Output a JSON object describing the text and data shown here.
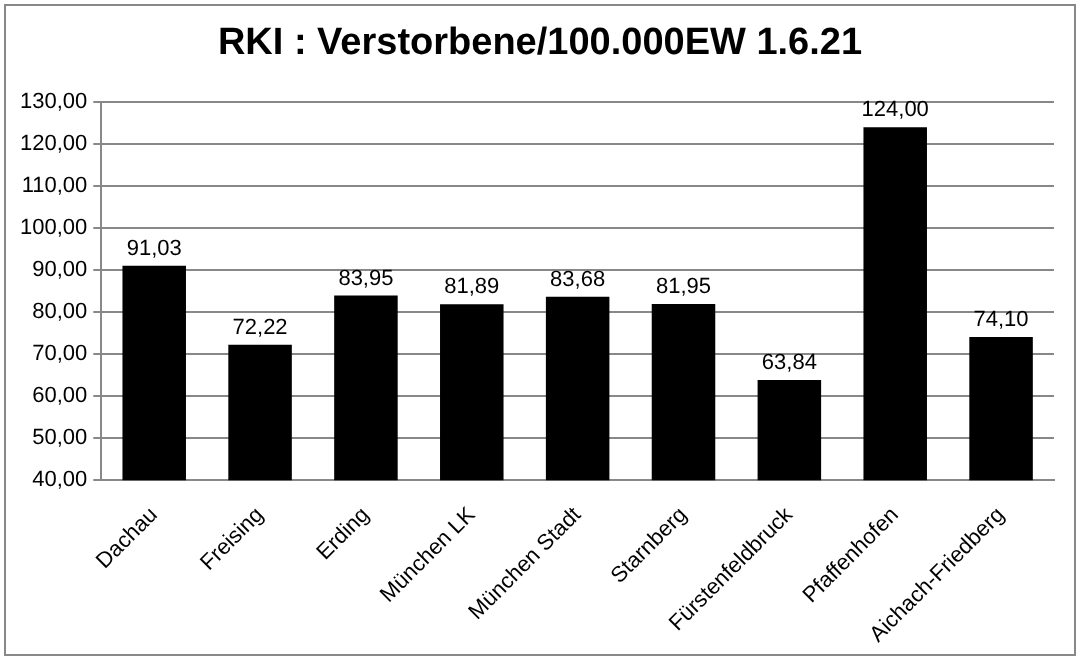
{
  "chart_data": {
    "type": "bar",
    "title": "RKI : Verstorbene/100.000EW 1.6.21",
    "categories": [
      "Dachau",
      "Freising",
      "Erding",
      "München LK",
      "München Stadt",
      "Starnberg",
      "Fürstenfeldbruck",
      "Pfaffenhofen",
      "Aichach-Friedberg"
    ],
    "values": [
      91.03,
      72.22,
      83.95,
      81.89,
      83.68,
      81.95,
      63.84,
      124.0,
      74.1
    ],
    "value_labels": [
      "91,03",
      "72,22",
      "83,95",
      "81,89",
      "83,68",
      "81,95",
      "63,84",
      "124,00",
      "74,10"
    ],
    "color": "#000000",
    "ylim": [
      40,
      130
    ],
    "yticks": [
      {
        "value": 40,
        "label": "40,00"
      },
      {
        "value": 50,
        "label": "50,00"
      },
      {
        "value": 60,
        "label": "60,00"
      },
      {
        "value": 70,
        "label": "70,00"
      },
      {
        "value": 80,
        "label": "80,00"
      },
      {
        "value": 90,
        "label": "90,00"
      },
      {
        "value": 100,
        "label": "100,00"
      },
      {
        "value": 110,
        "label": "110,00"
      },
      {
        "value": 120,
        "label": "120,00"
      },
      {
        "value": 130,
        "label": "130,00"
      }
    ],
    "grid": "y",
    "legend": false
  }
}
